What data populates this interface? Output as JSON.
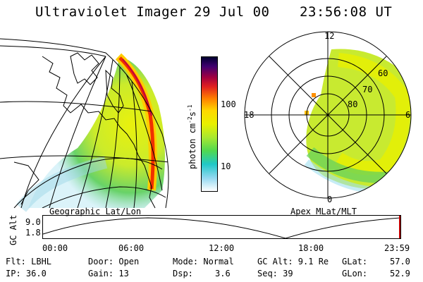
{
  "header": {
    "instrument": "Ultraviolet Imager",
    "date": "29 Jul 00",
    "time": "23:56:08 UT"
  },
  "left_panel": {
    "caption": "Geographic Lat/Lon"
  },
  "right_panel": {
    "caption": "Apex MLat/MLT",
    "mlt_labels": {
      "top": "12",
      "left": "18",
      "right": "6",
      "bottom": "0"
    },
    "lat_labels": [
      "60",
      "70",
      "80"
    ]
  },
  "colorbar": {
    "unit_main": "photon cm",
    "unit_exp1": "-2",
    "unit_s": "s",
    "unit_exp2": "-1",
    "tick_labels": [
      "100",
      "10"
    ],
    "scale": "log",
    "colors": [
      "#000030",
      "#400070",
      "#c00030",
      "#f04000",
      "#ffa000",
      "#ffe000",
      "#c0f000",
      "#40e040",
      "#20d0c0",
      "#80d0f0",
      "#ffffff"
    ]
  },
  "altitude_plot": {
    "ylabel": "GC Alt",
    "ytick_top": "9.0",
    "ytick_bottom": "1.8",
    "x_ticks": [
      "00:00",
      "06:00",
      "12:00",
      "18:00",
      "23:59"
    ]
  },
  "params": {
    "flt": "Flt: LBHL",
    "ip": "IP: 36.0",
    "door": "Door: Open",
    "gain": "Gain: 13",
    "mode": "Mode: Normal",
    "dsp_label": "Dsp:",
    "dsp_value": "3.6",
    "gc_alt": "GC Alt: 9.1 Re",
    "seq": "Seq: 39",
    "glat_label": "GLat:",
    "glat_value": "57.0",
    "glon_label": "GLon:",
    "glon_value": "52.9"
  }
}
